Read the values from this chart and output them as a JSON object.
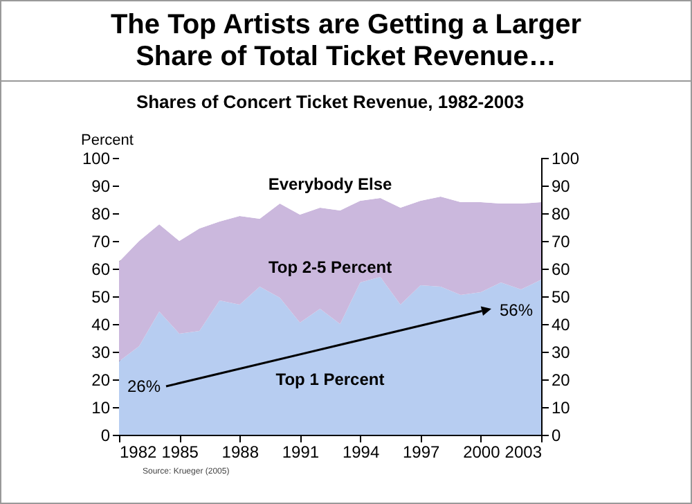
{
  "chart_data": {
    "type": "area",
    "title": "The Top Artists are Getting a Larger Share of Total Ticket Revenue…",
    "subtitle": "Shares of Concert Ticket Revenue, 1982-2003",
    "ylabel": "Percent",
    "x": [
      1982,
      1983,
      1984,
      1985,
      1986,
      1987,
      1988,
      1989,
      1990,
      1991,
      1992,
      1993,
      1994,
      1995,
      1996,
      1997,
      1998,
      1999,
      2000,
      2001,
      2002,
      2003
    ],
    "stacked": true,
    "series": [
      {
        "name": "Top 1 Percent",
        "color": "#b7cdf1",
        "values": [
          26.5,
          32,
          44.5,
          36.5,
          37.5,
          48.5,
          47,
          53.5,
          49.5,
          40.5,
          45.5,
          40,
          55,
          57,
          47,
          54,
          53.5,
          50.5,
          51.5,
          55,
          52.5,
          56
        ]
      },
      {
        "name": "Top 2-5 Percent",
        "color": "#cbb8dd",
        "values": [
          36,
          38,
          31.5,
          33.5,
          37,
          28.5,
          32,
          24.5,
          34,
          39,
          36.5,
          41,
          29.5,
          28.5,
          35,
          30.5,
          32.5,
          33.5,
          32.5,
          28.5,
          31,
          28
        ]
      },
      {
        "name": "Everybody  Else",
        "color": "#ffffff",
        "values": [
          37.5,
          30,
          24,
          30,
          25.5,
          23,
          21,
          22,
          16.5,
          20.5,
          18,
          19,
          15.5,
          14.5,
          18,
          15.5,
          14,
          16,
          16,
          16.5,
          16.5,
          16
        ]
      }
    ],
    "xlim": [
      1982,
      2003
    ],
    "xticks": [
      1982,
      1985,
      1988,
      1991,
      1994,
      1997,
      2000,
      2003
    ],
    "ylim": [
      0,
      100
    ],
    "yticks": [
      0,
      10,
      20,
      30,
      40,
      50,
      60,
      70,
      80,
      90,
      100
    ],
    "y2lim": [
      0,
      100
    ],
    "y2ticks": [
      0,
      10,
      20,
      30,
      40,
      50,
      60,
      70,
      80,
      90,
      100
    ],
    "annotations": [
      "26%",
      "56%",
      "Source: Krueger (2005)"
    ],
    "legend": false,
    "grid": false
  }
}
